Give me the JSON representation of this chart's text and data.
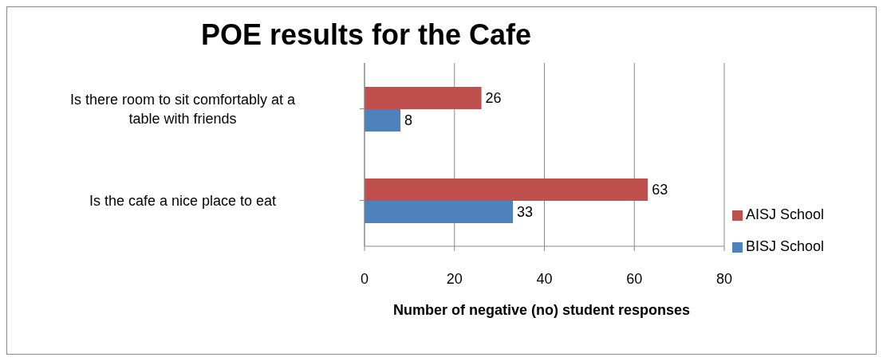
{
  "chart_data": {
    "type": "bar",
    "orientation": "horizontal",
    "title": "POE results for the Cafe",
    "xlabel": "Number of negative (no) student responses",
    "categories": [
      "Is there room to sit comfortably at a table with friends",
      "Is the cafe a nice place to eat"
    ],
    "series": [
      {
        "name": "AISJ School",
        "color": "#c0504d",
        "values": [
          26,
          63
        ]
      },
      {
        "name": "BISJ School",
        "color": "#4f81bd",
        "values": [
          8,
          33
        ]
      }
    ],
    "xlim": [
      0,
      80
    ],
    "xticks": [
      0,
      20,
      40,
      60,
      80
    ],
    "grid": "x",
    "legend": "right",
    "data_labels": true
  }
}
